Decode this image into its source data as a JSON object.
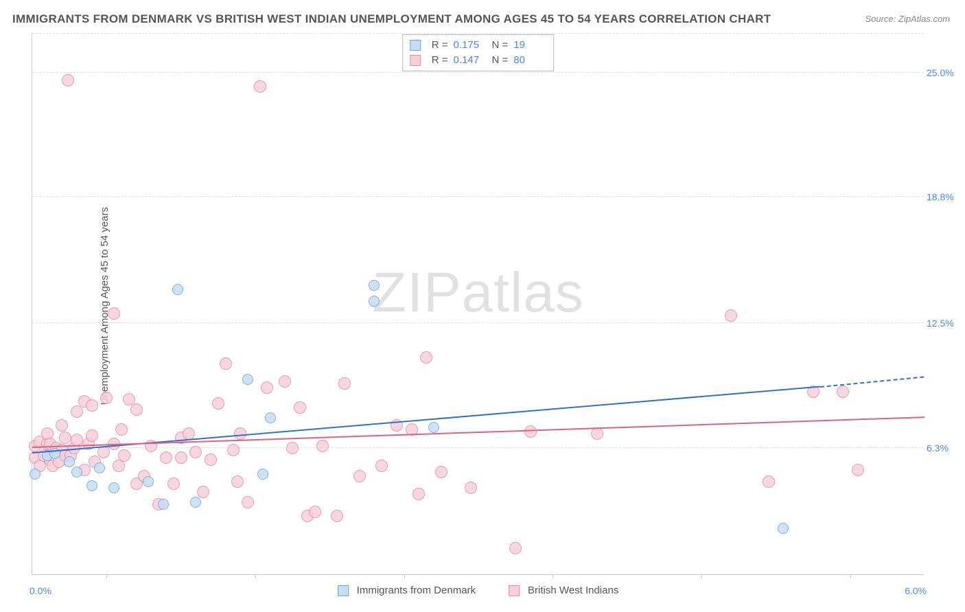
{
  "title": "IMMIGRANTS FROM DENMARK VS BRITISH WEST INDIAN UNEMPLOYMENT AMONG AGES 45 TO 54 YEARS CORRELATION CHART",
  "source": "Source: ZipAtlas.com",
  "ylabel": "Unemployment Among Ages 45 to 54 years",
  "watermark_a": "ZIP",
  "watermark_b": "atlas",
  "xaxis": {
    "min_label": "0.0%",
    "max_label": "6.0%",
    "min": 0.0,
    "max": 6.0,
    "ticks": [
      0.5,
      1.5,
      2.5,
      3.5,
      4.5,
      5.5
    ]
  },
  "yaxis": {
    "min": 0.0,
    "max": 27.0,
    "ticks": [
      {
        "v": 6.3,
        "label": "6.3%"
      },
      {
        "v": 12.5,
        "label": "12.5%"
      },
      {
        "v": 18.8,
        "label": "18.8%"
      },
      {
        "v": 25.0,
        "label": "25.0%"
      }
    ]
  },
  "series": {
    "blue": {
      "name": "Immigrants from Denmark",
      "fill": "#c7ddf2",
      "stroke": "#6aa3e0",
      "line": "#2e6fd6",
      "r_label": "R =",
      "r_value": "0.175",
      "n_label": "N =",
      "n_value": "19",
      "marker_r": 8,
      "trend": {
        "x1": 0.0,
        "y1": 6.0,
        "x2": 5.3,
        "y2": 9.3,
        "dash_to_x": 6.0,
        "dash_to_y": 9.8
      },
      "points": [
        [
          0.02,
          5.0
        ],
        [
          0.1,
          5.9
        ],
        [
          0.15,
          6.0
        ],
        [
          0.25,
          5.6
        ],
        [
          0.3,
          5.1
        ],
        [
          0.4,
          4.4
        ],
        [
          0.45,
          5.3
        ],
        [
          0.55,
          4.3
        ],
        [
          0.78,
          4.6
        ],
        [
          0.88,
          3.5
        ],
        [
          0.98,
          14.2
        ],
        [
          1.1,
          3.6
        ],
        [
          1.45,
          9.7
        ],
        [
          1.55,
          5.0
        ],
        [
          1.6,
          7.8
        ],
        [
          2.3,
          14.4
        ],
        [
          2.3,
          13.6
        ],
        [
          2.7,
          7.3
        ],
        [
          5.05,
          2.3
        ]
      ]
    },
    "pink": {
      "name": "British West Indians",
      "fill": "#f6d1da",
      "stroke": "#e58aa2",
      "line": "#e0607f",
      "r_label": "R =",
      "r_value": "0.147",
      "n_label": "N =",
      "n_value": "80",
      "marker_r": 9,
      "trend": {
        "x1": 0.0,
        "y1": 6.3,
        "x2": 6.0,
        "y2": 7.8
      },
      "points": [
        [
          0.02,
          5.8
        ],
        [
          0.02,
          6.4
        ],
        [
          0.05,
          5.4
        ],
        [
          0.05,
          6.6
        ],
        [
          0.08,
          5.9
        ],
        [
          0.1,
          6.5
        ],
        [
          0.1,
          7.0
        ],
        [
          0.12,
          5.7
        ],
        [
          0.12,
          6.5
        ],
        [
          0.14,
          5.4
        ],
        [
          0.16,
          6.3
        ],
        [
          0.18,
          5.6
        ],
        [
          0.2,
          6.2
        ],
        [
          0.2,
          7.4
        ],
        [
          0.22,
          5.9
        ],
        [
          0.22,
          6.8
        ],
        [
          0.24,
          24.6
        ],
        [
          0.26,
          5.9
        ],
        [
          0.28,
          6.3
        ],
        [
          0.3,
          6.7
        ],
        [
          0.3,
          8.1
        ],
        [
          0.35,
          8.6
        ],
        [
          0.35,
          5.2
        ],
        [
          0.38,
          6.5
        ],
        [
          0.4,
          8.4
        ],
        [
          0.4,
          6.9
        ],
        [
          0.42,
          5.6
        ],
        [
          0.48,
          6.1
        ],
        [
          0.5,
          8.8
        ],
        [
          0.55,
          13.0
        ],
        [
          0.55,
          6.5
        ],
        [
          0.58,
          5.4
        ],
        [
          0.6,
          7.2
        ],
        [
          0.62,
          5.9
        ],
        [
          0.65,
          8.7
        ],
        [
          0.7,
          8.2
        ],
        [
          0.7,
          4.5
        ],
        [
          0.75,
          4.9
        ],
        [
          0.8,
          6.4
        ],
        [
          0.85,
          3.5
        ],
        [
          0.9,
          5.8
        ],
        [
          0.95,
          4.5
        ],
        [
          1.0,
          6.8
        ],
        [
          1.0,
          5.8
        ],
        [
          1.05,
          7.0
        ],
        [
          1.1,
          6.1
        ],
        [
          1.15,
          4.1
        ],
        [
          1.2,
          5.7
        ],
        [
          1.25,
          8.5
        ],
        [
          1.3,
          10.5
        ],
        [
          1.35,
          6.2
        ],
        [
          1.38,
          4.6
        ],
        [
          1.4,
          7.0
        ],
        [
          1.45,
          3.6
        ],
        [
          1.53,
          24.3
        ],
        [
          1.58,
          9.3
        ],
        [
          1.7,
          9.6
        ],
        [
          1.75,
          6.3
        ],
        [
          1.8,
          8.3
        ],
        [
          1.85,
          2.9
        ],
        [
          1.9,
          3.1
        ],
        [
          1.95,
          6.4
        ],
        [
          2.05,
          2.9
        ],
        [
          2.1,
          9.5
        ],
        [
          2.2,
          4.9
        ],
        [
          2.35,
          5.4
        ],
        [
          2.45,
          7.4
        ],
        [
          2.55,
          7.2
        ],
        [
          2.6,
          4.0
        ],
        [
          2.65,
          10.8
        ],
        [
          2.75,
          5.1
        ],
        [
          2.95,
          4.3
        ],
        [
          3.25,
          1.3
        ],
        [
          3.35,
          7.1
        ],
        [
          3.8,
          7.0
        ],
        [
          4.7,
          12.9
        ],
        [
          4.95,
          4.6
        ],
        [
          5.25,
          9.1
        ],
        [
          5.45,
          9.1
        ],
        [
          5.55,
          5.2
        ]
      ]
    }
  }
}
